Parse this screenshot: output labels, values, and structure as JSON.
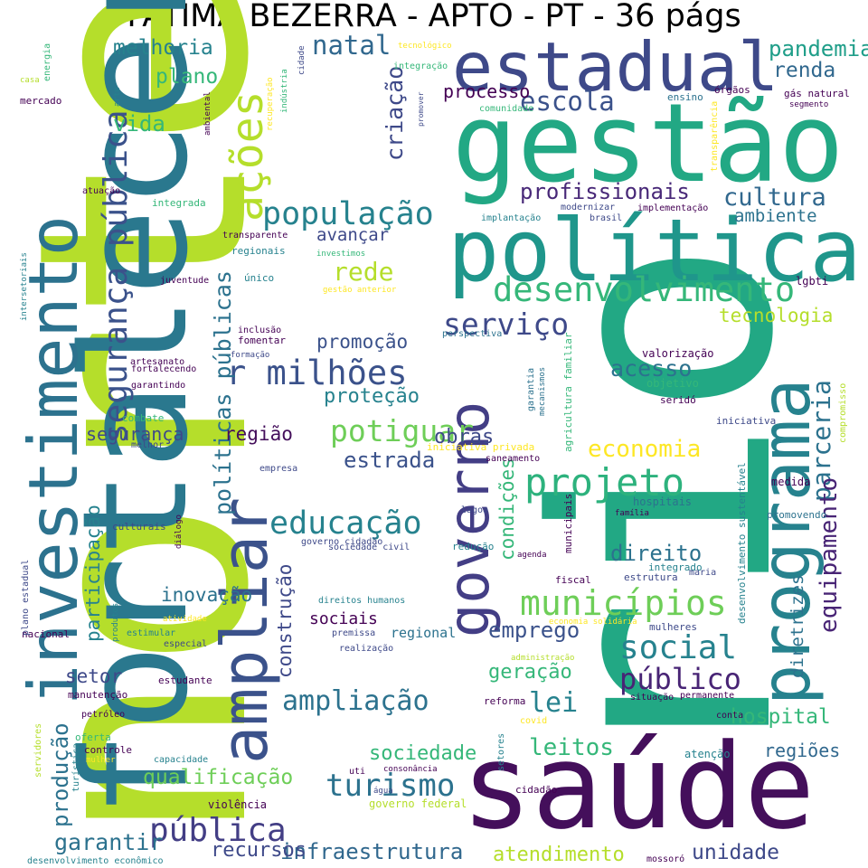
{
  "title": "FATIMA BEZERRA - APTO - PT - 36 págs",
  "palette": {
    "yellow": "#fde725",
    "lime": "#b5de2b",
    "green": "#6ece58",
    "emerald": "#35b779",
    "teal": "#1f9e89",
    "teal_blue": "#26828e",
    "blue": "#31688e",
    "indigo": "#3e4989",
    "purple": "#482878",
    "dark_purple": "#440154"
  },
  "words": [
    {
      "text": "norte",
      "color": "#b5de2b"
    },
    {
      "text": "rio",
      "color": "#22a884"
    },
    {
      "text": "fortalecer",
      "color": "#2a788e"
    },
    {
      "text": "saúde",
      "color": "#440f5b"
    },
    {
      "text": "gestão",
      "color": "#22a884"
    },
    {
      "text": "estadual",
      "color": "#3e4989"
    },
    {
      "text": "política",
      "color": "#1f968b"
    },
    {
      "text": "investimento",
      "color": "#2c728e"
    },
    {
      "text": "ampliar",
      "color": "#3b528b"
    },
    {
      "text": "programa",
      "color": "#26828e"
    },
    {
      "text": "governo",
      "color": "#433e85"
    },
    {
      "text": "ações",
      "color": "#b5de2b"
    },
    {
      "text": "desenvolvimento",
      "color": "#35b779"
    },
    {
      "text": "população",
      "color": "#26828e"
    },
    {
      "text": "r milhões",
      "color": "#3b528b"
    },
    {
      "text": "municípios",
      "color": "#6ece58"
    },
    {
      "text": "projeto",
      "color": "#2db27d"
    },
    {
      "text": "educação",
      "color": "#26828e"
    },
    {
      "text": "segurança pública",
      "color": "#3b528b"
    },
    {
      "text": "social",
      "color": "#26828e"
    },
    {
      "text": "pública",
      "color": "#433e85"
    },
    {
      "text": "turismo",
      "color": "#2c728e"
    },
    {
      "text": "serviço",
      "color": "#3e4989"
    },
    {
      "text": "potiguar",
      "color": "#6ece58"
    },
    {
      "text": "público",
      "color": "#482475"
    },
    {
      "text": "ampliação",
      "color": "#2c728e"
    },
    {
      "text": "escola",
      "color": "#3b528b"
    },
    {
      "text": "natal",
      "color": "#31688e"
    },
    {
      "text": "profissionais",
      "color": "#482878"
    },
    {
      "text": "políticas públicas",
      "color": "#2c728e"
    },
    {
      "text": "parceria",
      "color": "#2c728e"
    },
    {
      "text": "equipamento",
      "color": "#482475"
    },
    {
      "text": "pandemia",
      "color": "#1f9e89"
    },
    {
      "text": "cultura",
      "color": "#31688e"
    },
    {
      "text": "renda",
      "color": "#31688e"
    },
    {
      "text": "economia",
      "color": "#fde725"
    },
    {
      "text": "infraestrutura",
      "color": "#31688e"
    },
    {
      "text": "recursos",
      "color": "#3e4989"
    },
    {
      "text": "leitos",
      "color": "#35b779"
    },
    {
      "text": "qualificação",
      "color": "#6ece58"
    },
    {
      "text": "garantir",
      "color": "#2c728e"
    },
    {
      "text": "lei",
      "color": "#26828e"
    },
    {
      "text": "unidade",
      "color": "#3e4989"
    },
    {
      "text": "atendimento",
      "color": "#b5de2b"
    },
    {
      "text": "produção",
      "color": "#2c728e"
    },
    {
      "text": "sociedade",
      "color": "#35b779"
    },
    {
      "text": "hospital",
      "color": "#35b779"
    },
    {
      "text": "regiões",
      "color": "#31688e"
    },
    {
      "text": "acesso",
      "color": "#2c728e"
    },
    {
      "text": "estrada",
      "color": "#3b528b"
    },
    {
      "text": "segurança",
      "color": "#3e4989"
    },
    {
      "text": "região",
      "color": "#440f5b"
    },
    {
      "text": "obras",
      "color": "#3e4989"
    },
    {
      "text": "proteção",
      "color": "#26828e"
    },
    {
      "text": "promoção",
      "color": "#3b528b"
    },
    {
      "text": "rede",
      "color": "#b5de2b"
    },
    {
      "text": "avançar",
      "color": "#3e4989"
    },
    {
      "text": "tecnologia",
      "color": "#b5de2b"
    },
    {
      "text": "ambiente",
      "color": "#2c728e"
    },
    {
      "text": "melhoria",
      "color": "#26828e"
    },
    {
      "text": "plano",
      "color": "#35b779"
    },
    {
      "text": "vida",
      "color": "#35b779"
    },
    {
      "text": "processo",
      "color": "#440154"
    },
    {
      "text": "criação",
      "color": "#3e4989"
    },
    {
      "text": "emprego",
      "color": "#3b528b"
    },
    {
      "text": "geração",
      "color": "#35b779"
    },
    {
      "text": "direito",
      "color": "#2c728e"
    },
    {
      "text": "inovação",
      "color": "#2c728e"
    },
    {
      "text": "sociais",
      "color": "#440154"
    },
    {
      "text": "regional",
      "color": "#2c728e"
    },
    {
      "text": "construção",
      "color": "#3e4989"
    },
    {
      "text": "setor",
      "color": "#3e4989"
    },
    {
      "text": "participação",
      "color": "#26828e"
    },
    {
      "text": "condições",
      "color": "#35b779"
    },
    {
      "text": "diretrizes",
      "color": "#2c728e"
    },
    {
      "text": "gás natural",
      "color": "#440154"
    },
    {
      "text": "segmento",
      "color": "#440154"
    },
    {
      "text": "ensino",
      "color": "#2c728e"
    },
    {
      "text": "órgãos",
      "color": "#440154"
    },
    {
      "text": "comunidade",
      "color": "#35b779"
    },
    {
      "text": "transparência",
      "color": "#fde725"
    },
    {
      "text": "implementação",
      "color": "#440154"
    },
    {
      "text": "implantação",
      "color": "#26828e"
    },
    {
      "text": "modernizar",
      "color": "#3e4989"
    },
    {
      "text": "brasil",
      "color": "#3e4989"
    },
    {
      "text": "lgbti",
      "color": "#440154"
    },
    {
      "text": "valorização",
      "color": "#440154"
    },
    {
      "text": "objetivo",
      "color": "#35b779"
    },
    {
      "text": "seridó",
      "color": "#440154"
    },
    {
      "text": "iniciativa",
      "color": "#3e4989"
    },
    {
      "text": "compromisso",
      "color": "#b5de2b"
    },
    {
      "text": "medida",
      "color": "#440154"
    },
    {
      "text": "promovendo",
      "color": "#2c728e"
    },
    {
      "text": "hospitais",
      "color": "#2c728e"
    },
    {
      "text": "família",
      "color": "#440154"
    },
    {
      "text": "desenvolvimento sustentável",
      "color": "#26828e"
    },
    {
      "text": "agricultura familiar",
      "color": "#35b779"
    },
    {
      "text": "mecanismos",
      "color": "#2c728e"
    },
    {
      "text": "garantia",
      "color": "#2c728e"
    },
    {
      "text": "municipais",
      "color": "#440154"
    },
    {
      "text": "iniciativa privada",
      "color": "#fde725"
    },
    {
      "text": "saneamento",
      "color": "#440154"
    },
    {
      "text": "perspectiva",
      "color": "#2c728e"
    },
    {
      "text": "lagoa",
      "color": "#3e4989"
    },
    {
      "text": "redução",
      "color": "#26828e"
    },
    {
      "text": "agenda",
      "color": "#440154"
    },
    {
      "text": "fiscal",
      "color": "#440154"
    },
    {
      "text": "integrado",
      "color": "#26828e"
    },
    {
      "text": "estrutura",
      "color": "#3e4989"
    },
    {
      "text": "maria",
      "color": "#3e4989"
    },
    {
      "text": "mulheres",
      "color": "#3e4989"
    },
    {
      "text": "economia solidária",
      "color": "#fde725"
    },
    {
      "text": "administração",
      "color": "#b5de2b"
    },
    {
      "text": "situação",
      "color": "#440154"
    },
    {
      "text": "permanente",
      "color": "#440154"
    },
    {
      "text": "reforma",
      "color": "#440154"
    },
    {
      "text": "covid",
      "color": "#fde725"
    },
    {
      "text": "conta",
      "color": "#440154"
    },
    {
      "text": "atenção",
      "color": "#26828e"
    },
    {
      "text": "setores",
      "color": "#26828e"
    },
    {
      "text": "cidadão",
      "color": "#440154"
    },
    {
      "text": "mossoró",
      "color": "#440154"
    },
    {
      "text": "uti",
      "color": "#440154"
    },
    {
      "text": "consonância",
      "color": "#440154"
    },
    {
      "text": "água",
      "color": "#3e4989"
    },
    {
      "text": "governo federal",
      "color": "#b5de2b"
    },
    {
      "text": "violência",
      "color": "#440154"
    },
    {
      "text": "capacidade",
      "color": "#26828e"
    },
    {
      "text": "controle",
      "color": "#440154"
    },
    {
      "text": "mulher",
      "color": "#fde725"
    },
    {
      "text": "oferta",
      "color": "#35b779"
    },
    {
      "text": "petróleo",
      "color": "#440154"
    },
    {
      "text": "manutenção",
      "color": "#440154"
    },
    {
      "text": "servidores",
      "color": "#b5de2b"
    },
    {
      "text": "turística",
      "color": "#26828e"
    },
    {
      "text": "desenvolvimento econômico",
      "color": "#26828e"
    },
    {
      "text": "estudante",
      "color": "#440154"
    },
    {
      "text": "especial",
      "color": "#3e4989"
    },
    {
      "text": "nacional",
      "color": "#440154"
    },
    {
      "text": "produtos",
      "color": "#26828e"
    },
    {
      "text": "estimular",
      "color": "#26828e"
    },
    {
      "text": "atividade",
      "color": "#fde725"
    },
    {
      "text": "plano estadual",
      "color": "#3e4989"
    },
    {
      "text": "direitos humanos",
      "color": "#26828e"
    },
    {
      "text": "premissa",
      "color": "#3e4989"
    },
    {
      "text": "realização",
      "color": "#3e4989"
    },
    {
      "text": "governo cidadão",
      "color": "#3e4989"
    },
    {
      "text": "sociedade civil",
      "color": "#3e4989"
    },
    {
      "text": "culturais",
      "color": "#3e4989"
    },
    {
      "text": "diálogo",
      "color": "#440154"
    },
    {
      "text": "empresa",
      "color": "#3e4989"
    },
    {
      "text": "melhor",
      "color": "#3e4989"
    },
    {
      "text": "combate",
      "color": "#35b779"
    },
    {
      "text": "garantindo",
      "color": "#440154"
    },
    {
      "text": "formação",
      "color": "#3e4989"
    },
    {
      "text": "fortalecendo",
      "color": "#440154"
    },
    {
      "text": "artesanato",
      "color": "#440154"
    },
    {
      "text": "fomentar",
      "color": "#440154"
    },
    {
      "text": "inclusão",
      "color": "#440154"
    },
    {
      "text": "único",
      "color": "#26828e"
    },
    {
      "text": "juventude",
      "color": "#440154"
    },
    {
      "text": "intersetoriais",
      "color": "#26828e"
    },
    {
      "text": "gestão anterior",
      "color": "#fde725"
    },
    {
      "text": "investimos",
      "color": "#35b779"
    },
    {
      "text": "regionais",
      "color": "#26828e"
    },
    {
      "text": "transparente",
      "color": "#440154"
    },
    {
      "text": "integrada",
      "color": "#35b779"
    },
    {
      "text": "atuação",
      "color": "#440154"
    },
    {
      "text": "mercado",
      "color": "#440154"
    },
    {
      "text": "arte",
      "color": "#26828e"
    },
    {
      "text": "ambiental",
      "color": "#440154"
    },
    {
      "text": "casa",
      "color": "#b5de2b"
    },
    {
      "text": "energia",
      "color": "#35b779"
    },
    {
      "text": "recuperação",
      "color": "#fde725"
    },
    {
      "text": "indústria",
      "color": "#35b779"
    },
    {
      "text": "cidade",
      "color": "#3e4989"
    },
    {
      "text": "integração",
      "color": "#35b779"
    },
    {
      "text": "tecnológico",
      "color": "#fde725"
    },
    {
      "text": "promover",
      "color": "#3e4989"
    }
  ]
}
